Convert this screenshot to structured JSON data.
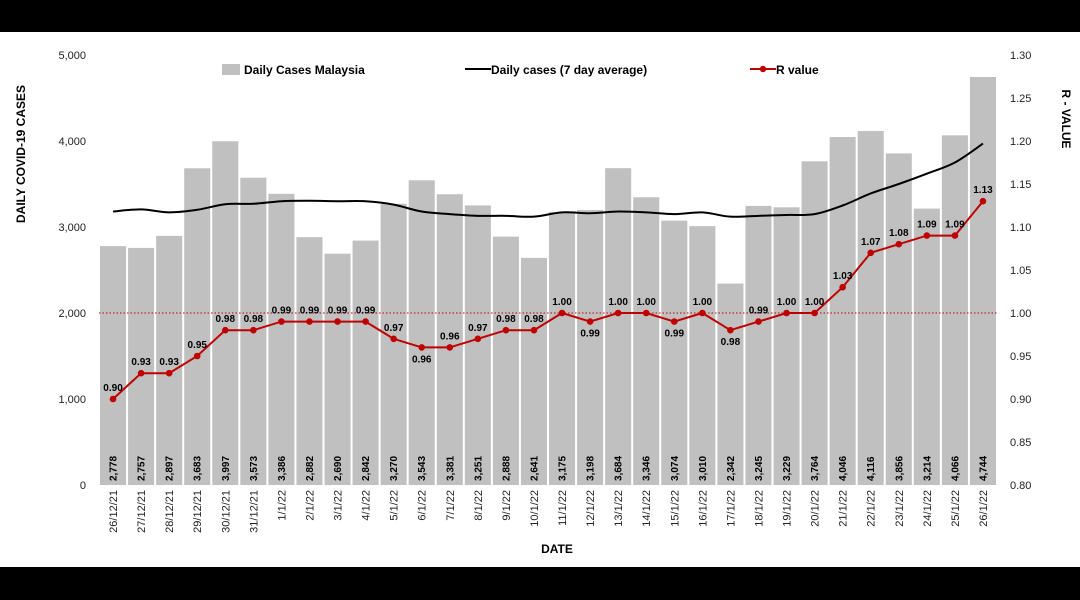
{
  "chart_data": {
    "type": "bar",
    "categories": [
      "26/12/21",
      "27/12/21",
      "28/12/21",
      "29/12/21",
      "30/12/21",
      "31/12/21",
      "1/1/22",
      "2/1/22",
      "3/1/22",
      "4/1/22",
      "5/1/22",
      "6/1/22",
      "7/1/22",
      "8/1/22",
      "9/1/22",
      "10/1/22",
      "11/1/22",
      "12/1/22",
      "13/1/22",
      "14/1/22",
      "15/1/22",
      "16/1/22",
      "17/1/22",
      "18/1/22",
      "19/1/22",
      "20/1/22",
      "21/1/22",
      "22/1/22",
      "23/1/22",
      "24/1/22",
      "25/1/22",
      "26/1/22"
    ],
    "series": [
      {
        "name": "Daily Cases Malaysia",
        "type": "bar",
        "axis": "left",
        "color": "#c0c0c0",
        "values": [
          2778,
          2757,
          2897,
          3683,
          3997,
          3573,
          3386,
          2882,
          2690,
          2842,
          3270,
          3543,
          3381,
          3251,
          2888,
          2641,
          3175,
          3198,
          3684,
          3346,
          3074,
          3010,
          2342,
          3245,
          3229,
          3764,
          4046,
          4116,
          3856,
          3214,
          4066,
          4744
        ],
        "labels": [
          "2,778",
          "2,757",
          "2,897",
          "3,683",
          "3,997",
          "3,573",
          "3,386",
          "2,882",
          "2,690",
          "2,842",
          "3,270",
          "3,543",
          "3,381",
          "3,251",
          "2,888",
          "2,641",
          "3,175",
          "3,198",
          "3,684",
          "3,346",
          "3,074",
          "3,010",
          "2,342",
          "3,245",
          "3,229",
          "3,764",
          "4,046",
          "4,116",
          "3,856",
          "3,214",
          "4,066",
          "4,744"
        ]
      },
      {
        "name": "Daily cases (7 day average)",
        "type": "line",
        "axis": "left",
        "color": "#000000",
        "values": [
          3180,
          3205,
          3170,
          3200,
          3265,
          3270,
          3300,
          3305,
          3300,
          3300,
          3260,
          3180,
          3150,
          3130,
          3130,
          3120,
          3170,
          3160,
          3180,
          3170,
          3150,
          3170,
          3120,
          3130,
          3140,
          3150,
          3250,
          3390,
          3500,
          3620,
          3750,
          3970
        ]
      },
      {
        "name": "R value",
        "type": "line",
        "axis": "right",
        "color": "#c00000",
        "values": [
          0.9,
          0.93,
          0.93,
          0.95,
          0.98,
          0.98,
          0.99,
          0.99,
          0.99,
          0.99,
          0.97,
          0.96,
          0.96,
          0.97,
          0.98,
          0.98,
          1.0,
          0.99,
          1.0,
          1.0,
          0.99,
          1.0,
          0.98,
          0.99,
          1.0,
          1.0,
          1.03,
          1.07,
          1.08,
          1.09,
          1.09,
          1.13
        ],
        "labels": [
          "0.90",
          "0.93",
          "0.93",
          "0.95",
          "0.98",
          "0.98",
          "0.99",
          "0.99",
          "0.99",
          "0.99",
          "0.97",
          "0.96",
          "0.96",
          "0.97",
          "0.98",
          "0.98",
          "1.00",
          "0.99",
          "1.00",
          "1.00",
          "0.99",
          "1.00",
          "0.98",
          "0.99",
          "1.00",
          "1.00",
          "1.03",
          "1.07",
          "1.08",
          "1.09",
          "1.09",
          "1.13"
        ]
      }
    ],
    "xlabel": "DATE",
    "ylabel": "DAILY COVID-19 CASES",
    "y2label": "R - VALUE",
    "ylim": [
      0,
      5000
    ],
    "y2lim": [
      0.8,
      1.3
    ],
    "yticks": [
      0,
      1000,
      2000,
      3000,
      4000,
      5000
    ],
    "ytick_labels": [
      "0",
      "1,000",
      "2,000",
      "3,000",
      "4,000",
      "5,000"
    ],
    "y2ticks": [
      0.8,
      0.85,
      0.9,
      0.95,
      1.0,
      1.05,
      1.1,
      1.15,
      1.2,
      1.25,
      1.3
    ],
    "y2tick_labels": [
      "0.80",
      "0.85",
      "0.90",
      "0.95",
      "1.00",
      "1.05",
      "1.10",
      "1.15",
      "1.20",
      "1.25",
      "1.30"
    ],
    "reference_line": {
      "axis": "right",
      "value": 1.0,
      "style": "dotted",
      "color": "#c00000"
    },
    "grid": false,
    "legend_position": "top"
  }
}
